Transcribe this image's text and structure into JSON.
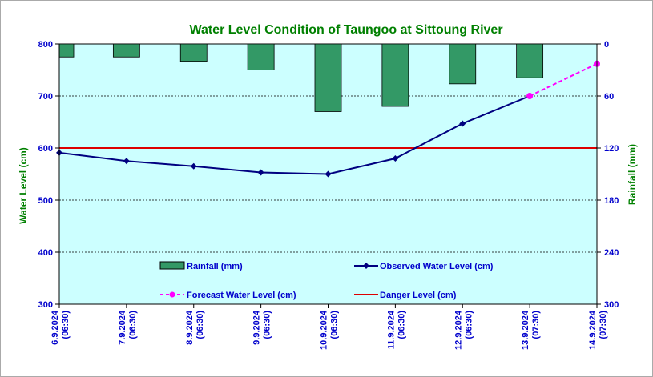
{
  "chart_data": {
    "type": "bar+line",
    "title": "Water Level Condition of Taungoo at  Sittoung River",
    "ylabel": "Water Level (cm)",
    "y2label": "Rainfall (mm)",
    "ylim": [
      300,
      800
    ],
    "y2lim": [
      0,
      300
    ],
    "y2_reversed": true,
    "yticks": [
      "800",
      "700",
      "600",
      "500",
      "400",
      "300"
    ],
    "y2ticks": [
      "0",
      "60",
      "120",
      "180",
      "240",
      "300"
    ],
    "categories": [
      {
        "date": "6.9.2024",
        "time": "(06:30)"
      },
      {
        "date": "7.9.2024",
        "time": "(06:30)"
      },
      {
        "date": "8.9.2024",
        "time": "(06:30)"
      },
      {
        "date": "9.9.2024",
        "time": "(06:30)"
      },
      {
        "date": "10.9.2024",
        "time": "(06:30)"
      },
      {
        "date": "11.9.2024",
        "time": "(06:30)"
      },
      {
        "date": "12.9.2024",
        "time": "(06:30)"
      },
      {
        "date": "13.9.2024",
        "time": "(07:30)"
      },
      {
        "date": "14.9.2024",
        "time": "(07:30)"
      }
    ],
    "rainfall": [
      15,
      15,
      20,
      30,
      78,
      72,
      46,
      39,
      null
    ],
    "observed": [
      591,
      575,
      565,
      553,
      550,
      580,
      647,
      700,
      null
    ],
    "forecast": [
      null,
      null,
      null,
      null,
      null,
      null,
      null,
      700,
      762
    ],
    "danger_level": 600,
    "legend": {
      "rainfall": "Rainfall (mm)",
      "observed": "Observed Water Level (cm)",
      "forecast": "Forecast Water Level (cm)",
      "danger": "Danger Level (cm)"
    },
    "legend_placement": "bottom-inside",
    "grid": true,
    "colors": {
      "plot_bg": "#ccffff",
      "rainfall": "#339966",
      "observed": "#000080",
      "forecast": "#ff00ff",
      "danger": "#dd0000",
      "title": "#008000",
      "axis_text": "#0000cc",
      "axis_label": "#008000"
    }
  }
}
